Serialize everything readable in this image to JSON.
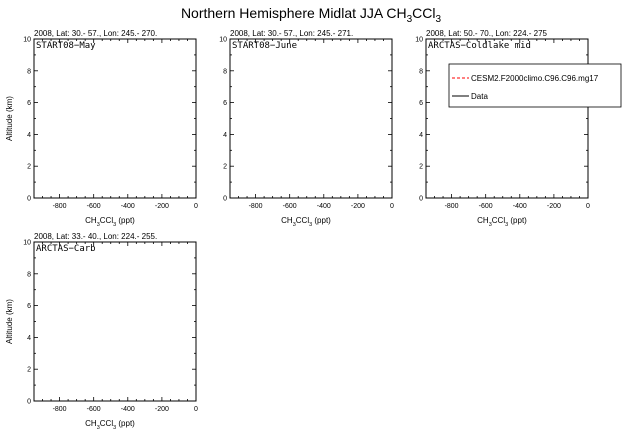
{
  "title": {
    "main": "Northern Hemisphere Midlat JJA CH",
    "sub1": "3",
    "mid": "CCl",
    "sub2": "3"
  },
  "x_axis_label": {
    "a": "CH",
    "sub1": "3",
    "b": "CCl",
    "sub2": "3",
    "c": " (ppt)"
  },
  "y_axis_label": "Altitude (km)",
  "chart_data": [
    {
      "type": "line",
      "header": "2008, Lat:  30.- 57., Lon: 245.- 270.",
      "name": "START08−May",
      "xlim": [
        -950,
        0
      ],
      "ylim": [
        0,
        10
      ],
      "xticks": [
        -800,
        -600,
        -400,
        -200,
        0
      ],
      "xtick_labels": [
        "-800",
        "-600",
        "-400",
        "-200",
        "0"
      ],
      "yticks": [
        0,
        2,
        4,
        6,
        8,
        10
      ],
      "ytick_labels": [
        "0",
        "2",
        "4",
        "6",
        "8",
        "10"
      ],
      "show_ylabel": true,
      "series": []
    },
    {
      "type": "line",
      "header": "2008, Lat:  30.- 57., Lon: 245.- 271.",
      "name": "START08−June",
      "xlim": [
        -950,
        0
      ],
      "ylim": [
        0,
        10
      ],
      "xticks": [
        -800,
        -600,
        -400,
        -200,
        0
      ],
      "xtick_labels": [
        "-800",
        "-600",
        "-400",
        "-200",
        "0"
      ],
      "yticks": [
        0,
        2,
        4,
        6,
        8,
        10
      ],
      "ytick_labels": [
        "0",
        "2",
        "4",
        "6",
        "8",
        "10"
      ],
      "show_ylabel": false,
      "series": []
    },
    {
      "type": "line",
      "header": "2008, Lat:  50.- 70., Lon: 224.- 275",
      "name": "ARCTAS−Coldlake mid",
      "xlim": [
        -950,
        0
      ],
      "ylim": [
        0,
        10
      ],
      "xticks": [
        -800,
        -600,
        -400,
        -200,
        0
      ],
      "xtick_labels": [
        "-800",
        "-600",
        "-400",
        "-200",
        "0"
      ],
      "yticks": [
        0,
        2,
        4,
        6,
        8,
        10
      ],
      "ytick_labels": [
        "0",
        "2",
        "4",
        "6",
        "8",
        "10"
      ],
      "show_ylabel": false,
      "series": [],
      "legend": {
        "placement": "top-right",
        "entries": [
          {
            "label": "CESM2.F2000climo.C96.C96.mg17",
            "color": "#ff0000",
            "dash": "dashed"
          },
          {
            "label": "Data",
            "color": "#000000",
            "dash": "solid"
          }
        ]
      }
    },
    {
      "type": "line",
      "header": "2008, Lat:  33.- 40., Lon: 224.- 255.",
      "name": "ARCTAS−Carb",
      "xlim": [
        -950,
        0
      ],
      "ylim": [
        0,
        10
      ],
      "xticks": [
        -800,
        -600,
        -400,
        -200,
        0
      ],
      "xtick_labels": [
        "-800",
        "-600",
        "-400",
        "-200",
        "0"
      ],
      "yticks": [
        0,
        2,
        4,
        6,
        8,
        10
      ],
      "ytick_labels": [
        "0",
        "2",
        "4",
        "6",
        "8",
        "10"
      ],
      "show_ylabel": true,
      "series": []
    }
  ]
}
